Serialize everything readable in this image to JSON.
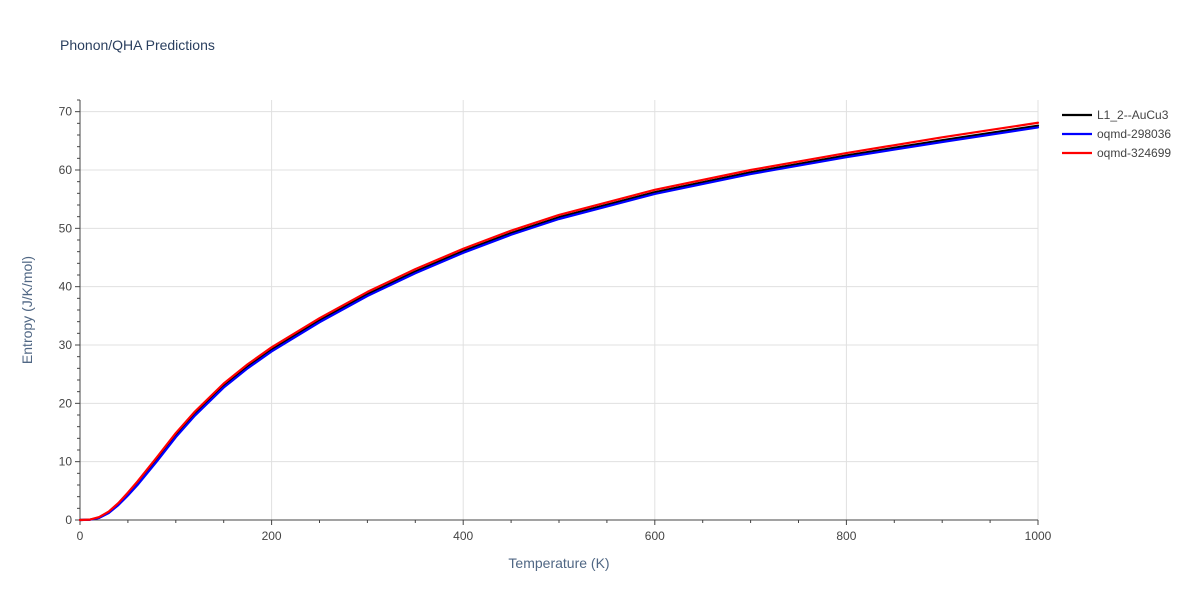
{
  "chart_data": {
    "type": "line",
    "title": "Phonon/QHA Predictions",
    "xlabel": "Temperature (K)",
    "ylabel": "Entropy (J/K/mol)",
    "xlim": [
      0,
      1000
    ],
    "ylim": [
      0,
      72
    ],
    "xticks": [
      0,
      200,
      400,
      600,
      800,
      1000
    ],
    "yticks": [
      0,
      10,
      20,
      30,
      40,
      50,
      60,
      70
    ],
    "grid": true,
    "legend_position": "top-right",
    "x": [
      0,
      10,
      20,
      30,
      40,
      50,
      60,
      80,
      100,
      120,
      150,
      175,
      200,
      250,
      300,
      350,
      400,
      450,
      500,
      600,
      700,
      800,
      900,
      1000
    ],
    "series": [
      {
        "name": "L1_2--AuCu3",
        "color": "#000000",
        "values": [
          0,
          0.05,
          0.4,
          1.3,
          2.7,
          4.4,
          6.2,
          10.3,
          14.5,
          18.2,
          23.0,
          26.3,
          29.2,
          34.2,
          38.7,
          42.6,
          46.1,
          49.2,
          51.9,
          56.2,
          59.6,
          62.5,
          65.1,
          67.6
        ]
      },
      {
        "name": "oqmd-298036",
        "color": "#0000ff",
        "values": [
          0,
          0.04,
          0.35,
          1.2,
          2.55,
          4.2,
          6.0,
          10.0,
          14.2,
          17.9,
          22.7,
          26.0,
          28.9,
          33.9,
          38.4,
          42.3,
          45.8,
          48.9,
          51.6,
          55.9,
          59.3,
          62.2,
          64.8,
          67.3
        ]
      },
      {
        "name": "oqmd-324699",
        "color": "#ff0000",
        "values": [
          0,
          0.06,
          0.5,
          1.45,
          2.9,
          4.7,
          6.6,
          10.7,
          14.9,
          18.6,
          23.4,
          26.7,
          29.6,
          34.6,
          39.1,
          43.0,
          46.5,
          49.6,
          52.3,
          56.6,
          60.0,
          62.9,
          65.6,
          68.1
        ]
      }
    ]
  }
}
